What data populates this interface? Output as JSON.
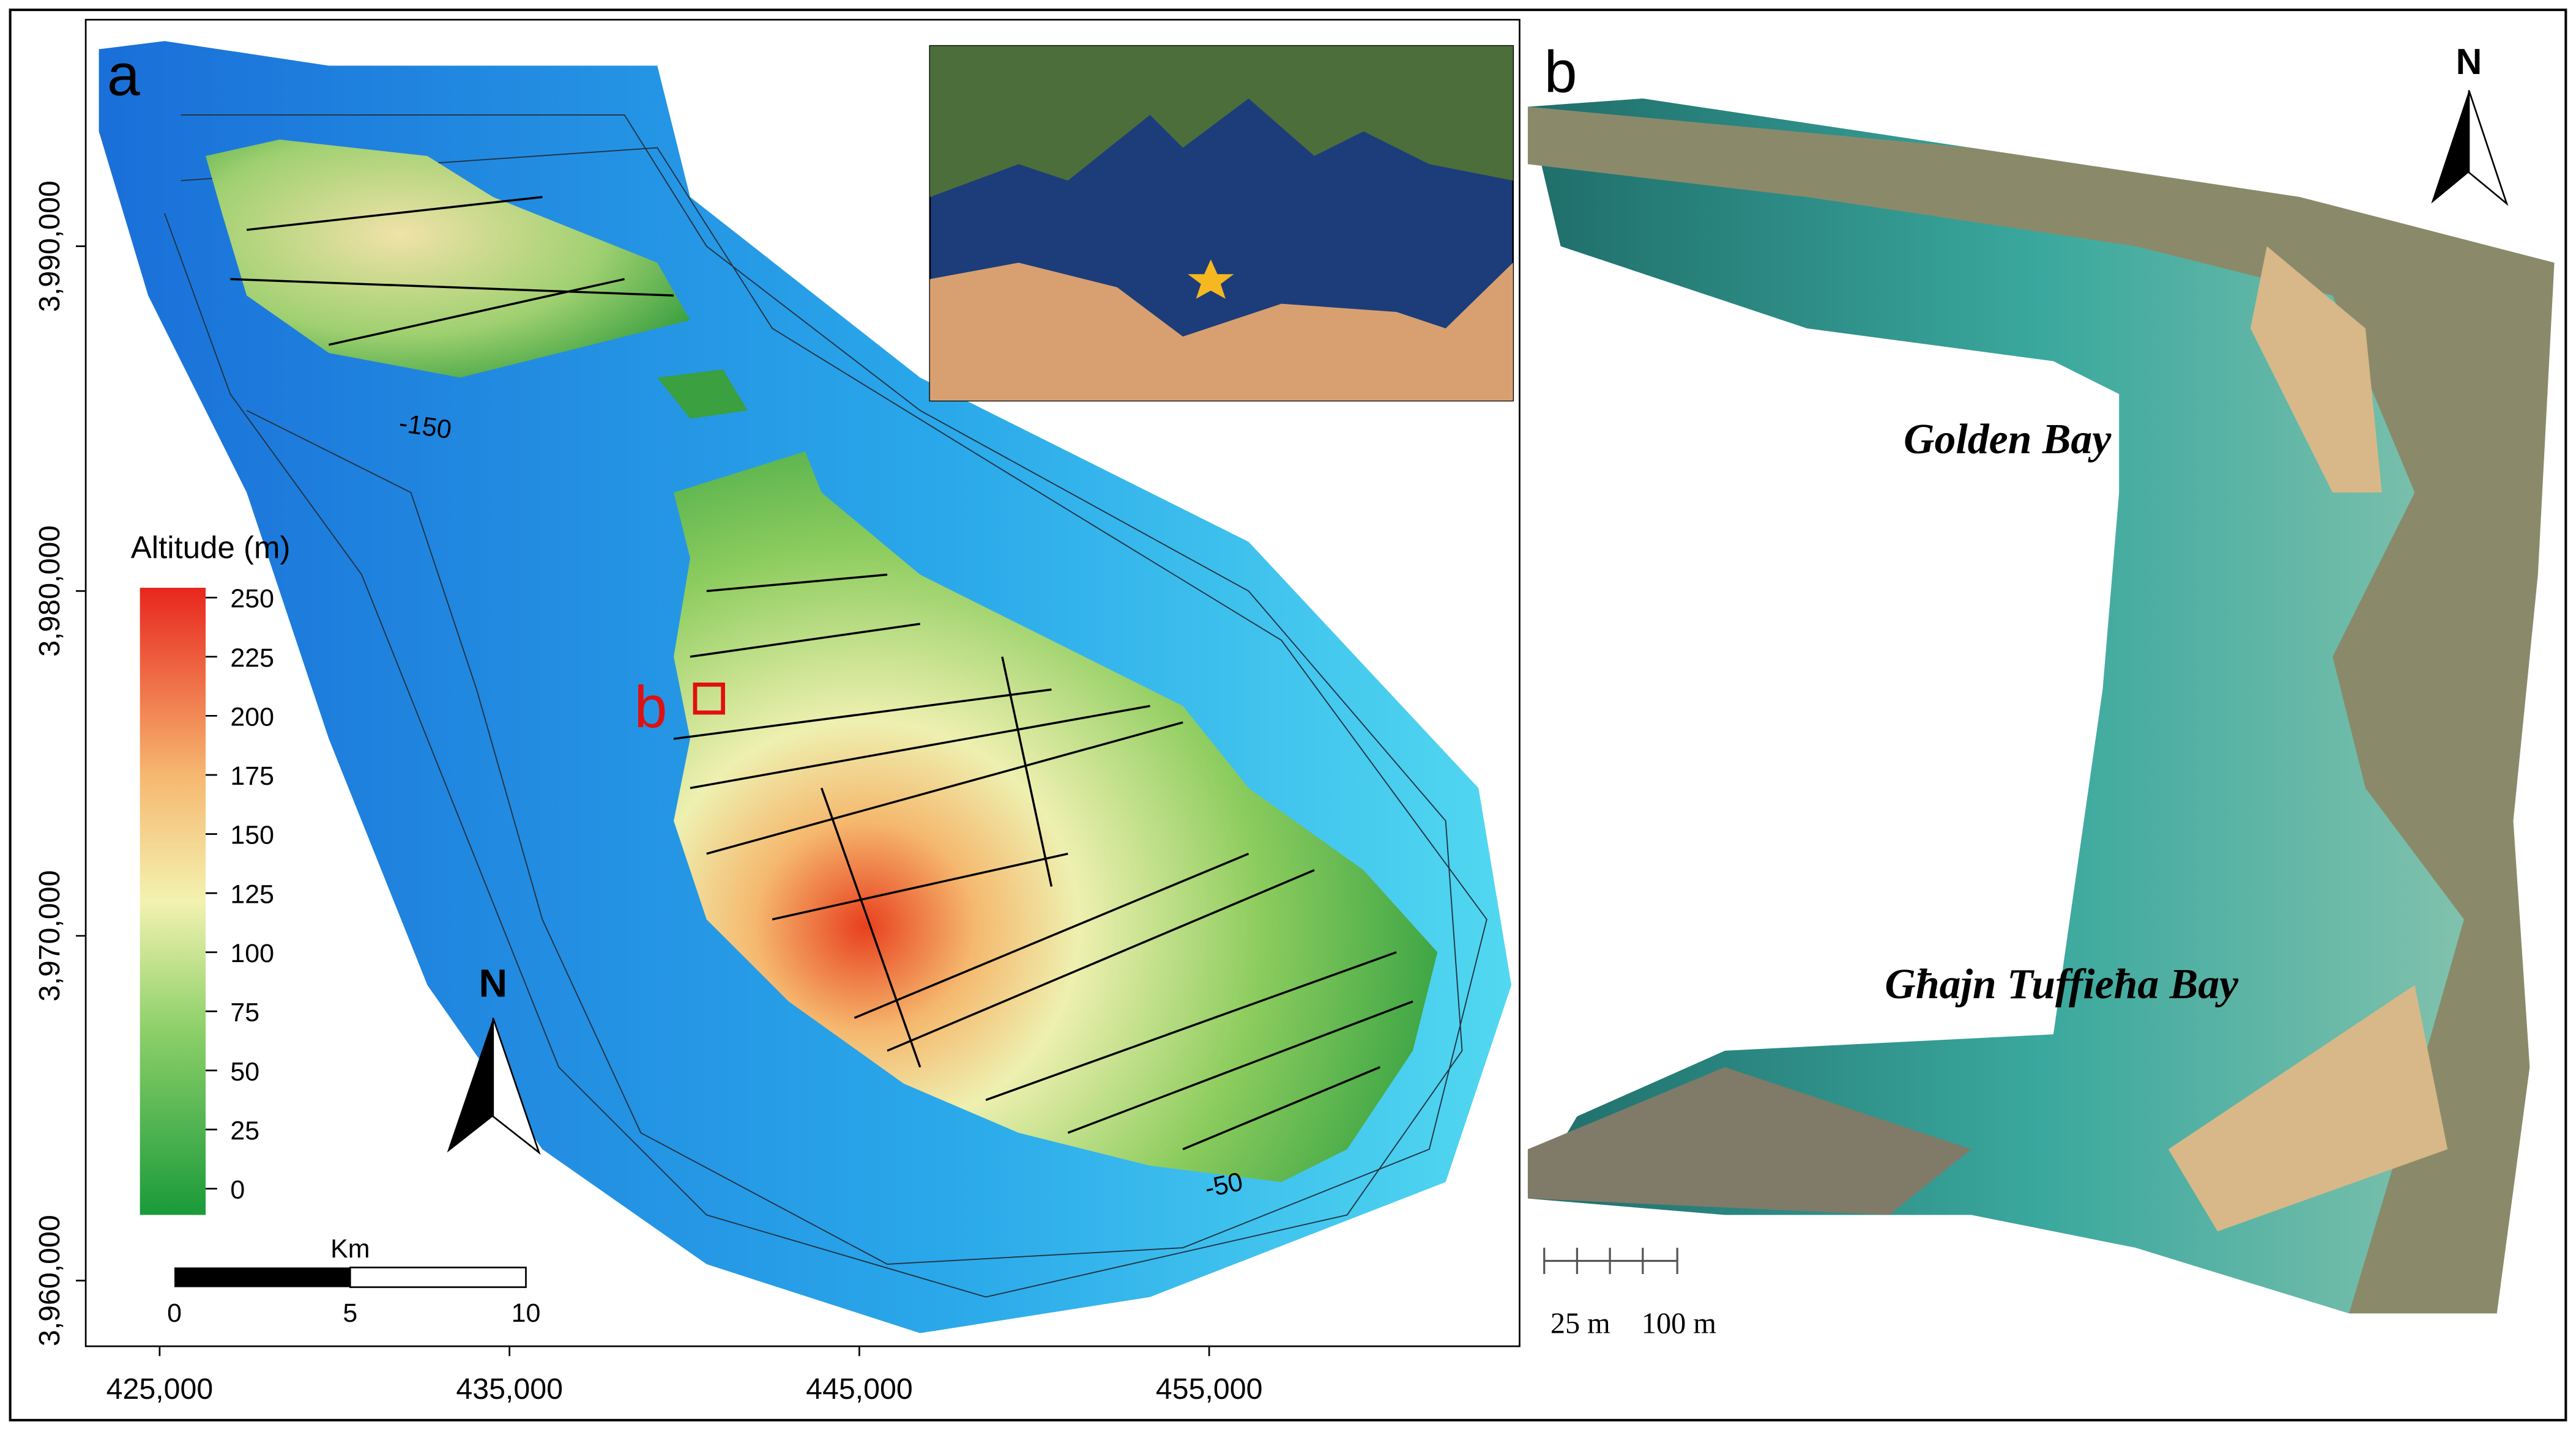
{
  "panel_a": {
    "label": "a",
    "inset_marker": "b",
    "legend": {
      "title": "Altitude (m)",
      "ticks": [
        250,
        225,
        200,
        175,
        150,
        125,
        100,
        75,
        50,
        25,
        0
      ]
    },
    "north": "N",
    "scale_bar": {
      "unit": "Km",
      "ticks": [
        0,
        5,
        10
      ]
    },
    "x_ticks": [
      "425,000",
      "435,000",
      "445,000",
      "455,000"
    ],
    "y_ticks": [
      "3,990,000",
      "3,980,000",
      "3,970,000",
      "3,960,000"
    ],
    "contour_labels": [
      "-150",
      "-50"
    ]
  },
  "panel_b": {
    "label": "b",
    "places": [
      "Golden Bay",
      "Għajn Tuffieħa Bay"
    ],
    "north": "N",
    "scale_labels": [
      "25 m",
      "100 m"
    ]
  }
}
